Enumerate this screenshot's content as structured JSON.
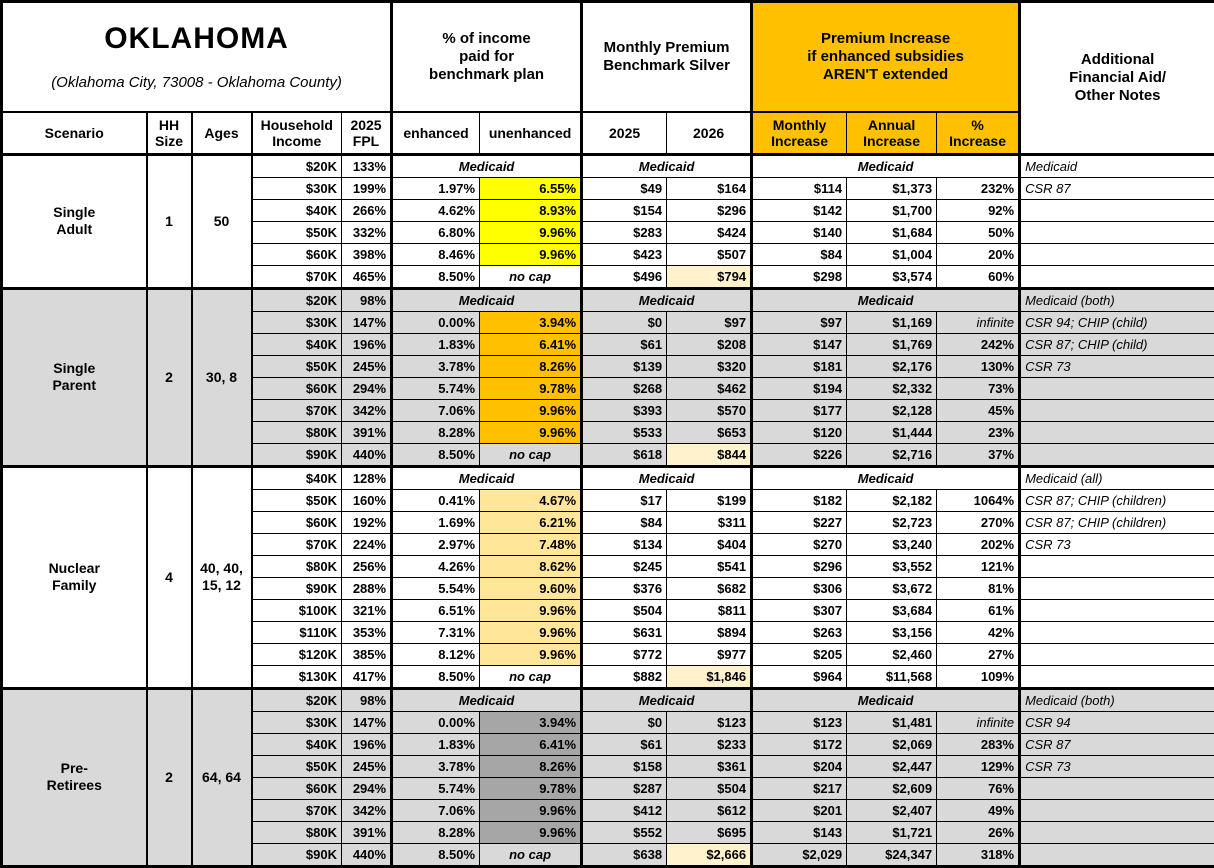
{
  "title": {
    "name": "OKLAHOMA",
    "subtitle": "(Oklahoma City, 73008 - Oklahoma County)"
  },
  "colors": {
    "header_orange": "#FFC000",
    "section_gray": "#D9D9D9",
    "highlight_2026": "#FFF2CC",
    "single_adult_highlight": "#FFFF00",
    "single_parent_highlight": "#FFC000",
    "nuclear_family_highlight": "#FFE699",
    "pre_retirees_highlight": "#A6A6A6"
  },
  "labels": {
    "medicaid": "Medicaid",
    "no_cap": "no cap",
    "infinite": "infinite"
  },
  "header": {
    "groups": {
      "income_pct": "% of income\npaid for\nbenchmark plan",
      "premium": "Monthly Premium\nBenchmark Silver",
      "increase": "Premium Increase\nif enhanced subsidies\nAREN'T extended",
      "notes": "Additional\nFinancial Aid/\nOther Notes"
    },
    "columns": {
      "scenario": "Scenario",
      "hh_size": "HH\nSize",
      "ages": "Ages",
      "income": "Household\nIncome",
      "fpl": "2025\nFPL",
      "enhanced": "enhanced",
      "unenhanced": "unenhanced",
      "y2025": "2025",
      "y2026": "2026",
      "monthly": "Monthly\nIncrease",
      "annual": "Annual\nIncrease",
      "pct": "%\nIncrease"
    }
  },
  "sections": [
    {
      "scenario": "Single\nAdult",
      "hh_size": "1",
      "ages": "50",
      "shaded": false,
      "unenhanced_highlight": "#FFFF00",
      "rows": [
        {
          "income": "$20K",
          "fpl": "133%",
          "medicaid": true,
          "note": "Medicaid"
        },
        {
          "income": "$30K",
          "fpl": "199%",
          "enhanced": "1.97%",
          "unenhanced": "6.55%",
          "premium_2025": "$49",
          "premium_2026": "$164",
          "monthly_increase": "$114",
          "annual_increase": "$1,373",
          "pct_increase": "232%",
          "note": "CSR 87"
        },
        {
          "income": "$40K",
          "fpl": "266%",
          "enhanced": "4.62%",
          "unenhanced": "8.93%",
          "premium_2025": "$154",
          "premium_2026": "$296",
          "monthly_increase": "$142",
          "annual_increase": "$1,700",
          "pct_increase": "92%",
          "note": ""
        },
        {
          "income": "$50K",
          "fpl": "332%",
          "enhanced": "6.80%",
          "unenhanced": "9.96%",
          "premium_2025": "$283",
          "premium_2026": "$424",
          "monthly_increase": "$140",
          "annual_increase": "$1,684",
          "pct_increase": "50%",
          "note": ""
        },
        {
          "income": "$60K",
          "fpl": "398%",
          "enhanced": "8.46%",
          "unenhanced": "9.96%",
          "premium_2025": "$423",
          "premium_2026": "$507",
          "monthly_increase": "$84",
          "annual_increase": "$1,004",
          "pct_increase": "20%",
          "note": ""
        },
        {
          "income": "$70K",
          "fpl": "465%",
          "enhanced": "8.50%",
          "unenhanced": "no cap",
          "no_cap": true,
          "premium_2025": "$496",
          "premium_2026": "$794",
          "premium_2026_highlight": true,
          "monthly_increase": "$298",
          "annual_increase": "$3,574",
          "pct_increase": "60%",
          "note": ""
        }
      ]
    },
    {
      "scenario": "Single\nParent",
      "hh_size": "2",
      "ages": "30, 8",
      "shaded": true,
      "unenhanced_highlight": "#FFC000",
      "rows": [
        {
          "income": "$20K",
          "fpl": "98%",
          "medicaid": true,
          "note": "Medicaid (both)"
        },
        {
          "income": "$30K",
          "fpl": "147%",
          "enhanced": "0.00%",
          "unenhanced": "3.94%",
          "premium_2025": "$0",
          "premium_2026": "$97",
          "monthly_increase": "$97",
          "annual_increase": "$1,169",
          "pct_increase": "infinite",
          "note": "CSR 94; CHIP (child)"
        },
        {
          "income": "$40K",
          "fpl": "196%",
          "enhanced": "1.83%",
          "unenhanced": "6.41%",
          "premium_2025": "$61",
          "premium_2026": "$208",
          "monthly_increase": "$147",
          "annual_increase": "$1,769",
          "pct_increase": "242%",
          "note": "CSR 87; CHIP (child)"
        },
        {
          "income": "$50K",
          "fpl": "245%",
          "enhanced": "3.78%",
          "unenhanced": "8.26%",
          "premium_2025": "$139",
          "premium_2026": "$320",
          "monthly_increase": "$181",
          "annual_increase": "$2,176",
          "pct_increase": "130%",
          "note": "CSR 73"
        },
        {
          "income": "$60K",
          "fpl": "294%",
          "enhanced": "5.74%",
          "unenhanced": "9.78%",
          "premium_2025": "$268",
          "premium_2026": "$462",
          "monthly_increase": "$194",
          "annual_increase": "$2,332",
          "pct_increase": "73%",
          "note": ""
        },
        {
          "income": "$70K",
          "fpl": "342%",
          "enhanced": "7.06%",
          "unenhanced": "9.96%",
          "premium_2025": "$393",
          "premium_2026": "$570",
          "monthly_increase": "$177",
          "annual_increase": "$2,128",
          "pct_increase": "45%",
          "note": ""
        },
        {
          "income": "$80K",
          "fpl": "391%",
          "enhanced": "8.28%",
          "unenhanced": "9.96%",
          "premium_2025": "$533",
          "premium_2026": "$653",
          "monthly_increase": "$120",
          "annual_increase": "$1,444",
          "pct_increase": "23%",
          "note": ""
        },
        {
          "income": "$90K",
          "fpl": "440%",
          "enhanced": "8.50%",
          "unenhanced": "no cap",
          "no_cap": true,
          "premium_2025": "$618",
          "premium_2026": "$844",
          "premium_2026_highlight": true,
          "monthly_increase": "$226",
          "annual_increase": "$2,716",
          "pct_increase": "37%",
          "note": ""
        }
      ]
    },
    {
      "scenario": "Nuclear\nFamily",
      "hh_size": "4",
      "ages": "40, 40,\n15, 12",
      "shaded": false,
      "unenhanced_highlight": "#FFE699",
      "rows": [
        {
          "income": "$40K",
          "fpl": "128%",
          "medicaid": true,
          "note": "Medicaid (all)"
        },
        {
          "income": "$50K",
          "fpl": "160%",
          "enhanced": "0.41%",
          "unenhanced": "4.67%",
          "premium_2025": "$17",
          "premium_2026": "$199",
          "monthly_increase": "$182",
          "annual_increase": "$2,182",
          "pct_increase": "1064%",
          "note": "CSR 87; CHIP (children)"
        },
        {
          "income": "$60K",
          "fpl": "192%",
          "enhanced": "1.69%",
          "unenhanced": "6.21%",
          "premium_2025": "$84",
          "premium_2026": "$311",
          "monthly_increase": "$227",
          "annual_increase": "$2,723",
          "pct_increase": "270%",
          "note": "CSR 87; CHIP (children)"
        },
        {
          "income": "$70K",
          "fpl": "224%",
          "enhanced": "2.97%",
          "unenhanced": "7.48%",
          "premium_2025": "$134",
          "premium_2026": "$404",
          "monthly_increase": "$270",
          "annual_increase": "$3,240",
          "pct_increase": "202%",
          "note": "CSR 73"
        },
        {
          "income": "$80K",
          "fpl": "256%",
          "enhanced": "4.26%",
          "unenhanced": "8.62%",
          "premium_2025": "$245",
          "premium_2026": "$541",
          "monthly_increase": "$296",
          "annual_increase": "$3,552",
          "pct_increase": "121%",
          "note": ""
        },
        {
          "income": "$90K",
          "fpl": "288%",
          "enhanced": "5.54%",
          "unenhanced": "9.60%",
          "premium_2025": "$376",
          "premium_2026": "$682",
          "monthly_increase": "$306",
          "annual_increase": "$3,672",
          "pct_increase": "81%",
          "note": ""
        },
        {
          "income": "$100K",
          "fpl": "321%",
          "enhanced": "6.51%",
          "unenhanced": "9.96%",
          "premium_2025": "$504",
          "premium_2026": "$811",
          "monthly_increase": "$307",
          "annual_increase": "$3,684",
          "pct_increase": "61%",
          "note": ""
        },
        {
          "income": "$110K",
          "fpl": "353%",
          "enhanced": "7.31%",
          "unenhanced": "9.96%",
          "premium_2025": "$631",
          "premium_2026": "$894",
          "monthly_increase": "$263",
          "annual_increase": "$3,156",
          "pct_increase": "42%",
          "note": ""
        },
        {
          "income": "$120K",
          "fpl": "385%",
          "enhanced": "8.12%",
          "unenhanced": "9.96%",
          "premium_2025": "$772",
          "premium_2026": "$977",
          "monthly_increase": "$205",
          "annual_increase": "$2,460",
          "pct_increase": "27%",
          "note": ""
        },
        {
          "income": "$130K",
          "fpl": "417%",
          "enhanced": "8.50%",
          "unenhanced": "no cap",
          "no_cap": true,
          "premium_2025": "$882",
          "premium_2026": "$1,846",
          "premium_2026_highlight": true,
          "monthly_increase": "$964",
          "annual_increase": "$11,568",
          "pct_increase": "109%",
          "note": ""
        }
      ]
    },
    {
      "scenario": "Pre-\nRetirees",
      "hh_size": "2",
      "ages": "64, 64",
      "shaded": true,
      "unenhanced_highlight": "#A6A6A6",
      "rows": [
        {
          "income": "$20K",
          "fpl": "98%",
          "medicaid": true,
          "note": "Medicaid (both)"
        },
        {
          "income": "$30K",
          "fpl": "147%",
          "enhanced": "0.00%",
          "unenhanced": "3.94%",
          "premium_2025": "$0",
          "premium_2026": "$123",
          "monthly_increase": "$123",
          "annual_increase": "$1,481",
          "pct_increase": "infinite",
          "note": "CSR 94"
        },
        {
          "income": "$40K",
          "fpl": "196%",
          "enhanced": "1.83%",
          "unenhanced": "6.41%",
          "premium_2025": "$61",
          "premium_2026": "$233",
          "monthly_increase": "$172",
          "annual_increase": "$2,069",
          "pct_increase": "283%",
          "note": "CSR 87"
        },
        {
          "income": "$50K",
          "fpl": "245%",
          "enhanced": "3.78%",
          "unenhanced": "8.26%",
          "premium_2025": "$158",
          "premium_2026": "$361",
          "monthly_increase": "$204",
          "annual_increase": "$2,447",
          "pct_increase": "129%",
          "note": "CSR 73"
        },
        {
          "income": "$60K",
          "fpl": "294%",
          "enhanced": "5.74%",
          "unenhanced": "9.78%",
          "premium_2025": "$287",
          "premium_2026": "$504",
          "monthly_increase": "$217",
          "annual_increase": "$2,609",
          "pct_increase": "76%",
          "note": ""
        },
        {
          "income": "$70K",
          "fpl": "342%",
          "enhanced": "7.06%",
          "unenhanced": "9.96%",
          "premium_2025": "$412",
          "premium_2026": "$612",
          "monthly_increase": "$201",
          "annual_increase": "$2,407",
          "pct_increase": "49%",
          "note": ""
        },
        {
          "income": "$80K",
          "fpl": "391%",
          "enhanced": "8.28%",
          "unenhanced": "9.96%",
          "premium_2025": "$552",
          "premium_2026": "$695",
          "monthly_increase": "$143",
          "annual_increase": "$1,721",
          "pct_increase": "26%",
          "note": ""
        },
        {
          "income": "$90K",
          "fpl": "440%",
          "enhanced": "8.50%",
          "unenhanced": "no cap",
          "no_cap": true,
          "premium_2025": "$638",
          "premium_2026": "$2,666",
          "premium_2026_highlight": true,
          "monthly_increase": "$2,029",
          "annual_increase": "$24,347",
          "pct_increase": "318%",
          "note": ""
        }
      ]
    }
  ]
}
